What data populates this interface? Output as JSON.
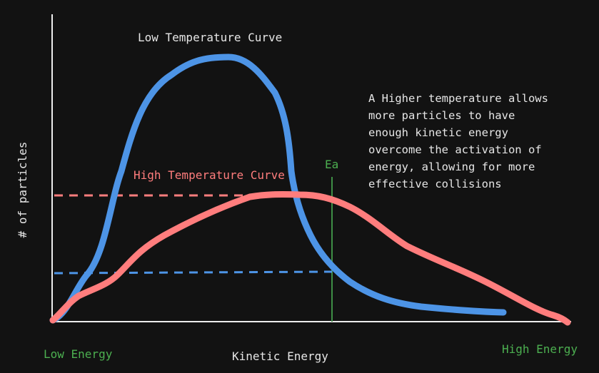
{
  "labels": {
    "low_temp": "Low Temperature Curve",
    "high_temp": "High Temperature Curve",
    "ea": "Ea",
    "y_axis": "# of particles",
    "x_axis": "Kinetic Energy",
    "low_energy": "Low Energy",
    "high_energy": "High Energy"
  },
  "note_lines": [
    "A Higher temperature allows",
    "more particles to have",
    "enough kinetic energy",
    "overcome the activation of",
    "energy, allowing for more",
    "effective collisions"
  ],
  "colors": {
    "background": "#121212",
    "axis": "#ededed",
    "low_curve": "#4d94e6",
    "high_curve": "#ff7d7d",
    "ea_line": "#3e8e45",
    "text": "#e6e6e6",
    "green_text": "#4caf50"
  }
}
